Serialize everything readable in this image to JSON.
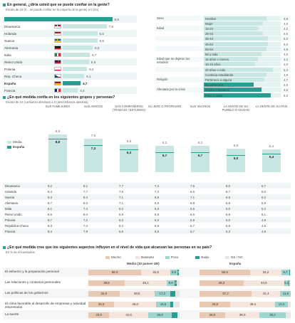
{
  "colors": {
    "mucho": "#e8c9b4",
    "bastante": "#f4e6dc",
    "poco": "#9ed6cf",
    "nada": "#2a9d92",
    "nsnc": "#e6e6e6",
    "highlight": "#2a9d92",
    "bar": "#c8e6e2"
  },
  "sec1": {
    "title": "En general, ¿diría usted que se puede confiar en la gente?",
    "subtitle": "Escala de 10 (0 ...se puede confiar en la mayoría de la gente) a 0 (no)"
  },
  "countries": [
    {
      "name": "Media (10 países UE)",
      "value": "5,5",
      "flag": "none"
    },
    {
      "name": "Dinamarca",
      "value": "7,5",
      "flag": "dk"
    },
    {
      "name": "Holanda",
      "value": "6,5",
      "flag": "nl"
    },
    {
      "name": "Suecia",
      "value": "6,5",
      "flag": "se"
    },
    {
      "name": "Alemania",
      "value": "6,0",
      "flag": "de"
    },
    {
      "name": "Italia",
      "value": "5,7",
      "flag": "it"
    },
    {
      "name": "Reino Unido",
      "value": "5,6",
      "flag": "uk"
    },
    {
      "name": "Polonia",
      "value": "5,4",
      "flag": "pl"
    },
    {
      "name": "Rep. Checa",
      "value": "5,1",
      "flag": "cz"
    },
    {
      "name": "España",
      "value": "4,7",
      "flag": "es"
    },
    {
      "name": "Francia",
      "value": "4,4",
      "flag": "fr"
    }
  ],
  "right_table": [
    {
      "cat": "Sexo",
      "label": "Hombre",
      "value": "4,9"
    },
    {
      "cat": "",
      "label": "Mujer",
      "value": "4,6"
    },
    {
      "cat": "Edad",
      "label": "18-24",
      "value": "4,2"
    },
    {
      "cat": "",
      "label": "25-34",
      "value": "4,6"
    },
    {
      "cat": "",
      "label": "35-44",
      "value": "5,0"
    },
    {
      "cat": "",
      "label": "45-54",
      "value": "5,0"
    },
    {
      "cat": "",
      "label": "55-64",
      "value": "4,9"
    },
    {
      "cat": "",
      "label": "65 y más",
      "value": "4,5"
    },
    {
      "cat": "Edad que se dejaron los estudios",
      "label": "15 años o menos",
      "value": "4,2"
    },
    {
      "cat": "",
      "label": "16-19 años",
      "value": "4,0"
    },
    {
      "cat": "",
      "label": "20 años o más",
      "value": "5,4"
    },
    {
      "cat": "",
      "label": "Continúa estudiando",
      "value": "4,9"
    },
    {
      "cat": "Religión",
      "label": "Pertenece a alguna",
      "value": "4,7"
    },
    {
      "cat": "",
      "label": "No pertenece",
      "value": "3,9"
    },
    {
      "cat": "Afectado por la crisis",
      "label": "Mucho o bastante",
      "value": "4,5"
    },
    {
      "cat": "",
      "label": "Poco o nada",
      "value": "5,2"
    }
  ],
  "sec2": {
    "title": "¿En qué medida confía en los siguientes grupos y personas?",
    "subtitle": "Escala de 10 (confianza absoluta) a 0 (desconfianza absoluta)",
    "legend_media": "Media",
    "legend_espana": "España"
  },
  "groups": [
    {
      "label": "SUS FAMILIARES",
      "media": "8,8",
      "espana": "8,8"
    },
    {
      "label": "SUS AMIGOS",
      "media": "7,9",
      "espana": "7,3"
    },
    {
      "label": "SUS COMPAÑEROS (TRABAJO / ESTUDIOS)",
      "media": "6,5",
      "espana": "6,3"
    },
    {
      "label": "SU JEFE O PROFESOR",
      "media": "6,2",
      "espana": "5,7"
    },
    {
      "label": "SUS VECINOS",
      "media": "6,2",
      "espana": "5,7"
    },
    {
      "label": "LA GENTE DE SU PUEBLO O CIUDAD",
      "media": "5,5",
      "espana": "5,0"
    },
    {
      "label": "LA GENTE DE SU PAÍS",
      "media": "5,4",
      "espana": "5,4"
    }
  ],
  "group_table": [
    {
      "name": "Dinamarca",
      "vals": [
        "9,2",
        "8,1",
        "7,7",
        "7,4",
        "7,6",
        "8,0",
        "6,7"
      ]
    },
    {
      "name": "Holanda",
      "vals": [
        "8,4",
        "7,7",
        "7,5",
        "7,3",
        "6,5",
        "6,7",
        "6,0"
      ]
    },
    {
      "name": "Suecia",
      "vals": [
        "9,3",
        "8,4",
        "7,1",
        "6,8",
        "7,1",
        "6,5",
        "6,2"
      ]
    },
    {
      "name": "Alemania",
      "vals": [
        "8,7",
        "8,2",
        "7,1",
        "6,0",
        "6,8",
        "5,6",
        "5,8"
      ]
    },
    {
      "name": "Italia",
      "vals": [
        "8,1",
        "7,4",
        "6,2",
        "6,3",
        "5,6",
        "5,0",
        "5,4"
      ]
    },
    {
      "name": "Reino Unido",
      "vals": [
        "8,6",
        "8,4",
        "6,8",
        "5,8",
        "6,5",
        "5,5",
        "5,1"
      ]
    },
    {
      "name": "Polonia",
      "vals": [
        "8,7",
        "7,2",
        "6,3",
        "6,2",
        "5,9",
        "5,0",
        "4,9"
      ]
    },
    {
      "name": "República Checa",
      "vals": [
        "8,3",
        "7,4",
        "6,2",
        "5,9",
        "5,7",
        "5,6",
        "4,6"
      ]
    },
    {
      "name": "Francia",
      "vals": [
        "8,4",
        "7,9",
        "6,6",
        "5,5",
        "5,7",
        "5,3",
        "4,9"
      ]
    }
  ],
  "sec3": {
    "title": "¿En qué medida cree que los siguientes aspectos influyen en el nivel de vida que alcanzan las personas en su país?",
    "subtitle": "En % de encuestados",
    "legend": [
      "Mucho",
      "Bastante",
      "Poco",
      "Nada",
      "NS / NC"
    ],
    "col_media": "Media (10 países UE)",
    "col_espana": "España"
  },
  "chart_data": [
    {
      "type": "bar",
      "title": "En general, ¿diría usted que se puede confiar en la gente?",
      "categories": [
        "Media (10 países UE)",
        "Dinamarca",
        "Holanda",
        "Suecia",
        "Alemania",
        "Italia",
        "Reino Unido",
        "Polonia",
        "Rep. Checa",
        "España",
        "Francia"
      ],
      "values": [
        5.5,
        7.5,
        6.5,
        6.5,
        6.0,
        5.7,
        5.6,
        5.4,
        5.1,
        4.7,
        4.4
      ],
      "xlim": [
        0,
        10
      ]
    },
    {
      "type": "bar",
      "title": "¿En qué medida confía en los siguientes grupos y personas?",
      "categories": [
        "SUS FAMILIARES",
        "SUS AMIGOS",
        "SUS COMPAÑEROS (TRABAJO / ESTUDIOS)",
        "SU JEFE O PROFESOR",
        "SUS VECINOS",
        "LA GENTE DE SU PUEBLO O CIUDAD",
        "LA GENTE DE SU PAÍS"
      ],
      "series": [
        {
          "name": "Media",
          "values": [
            8.8,
            7.9,
            6.5,
            6.2,
            6.2,
            5.5,
            5.4
          ]
        },
        {
          "name": "España",
          "values": [
            8.8,
            7.3,
            6.3,
            5.7,
            5.7,
            5.0,
            5.4
          ]
        }
      ],
      "ylim": [
        0,
        10
      ]
    },
    {
      "type": "bar",
      "title": "¿En qué medida cree que los siguientes aspectos influyen en el nivel de vida que alcanzan las personas en su país?",
      "stacked": true,
      "categories": [
        "El esfuerzo y la preparación personal",
        "Las relaciones y contactos personales",
        "Las políticas de los gobiernos",
        "El clima favorable al desarrollo de empresas y actividad empresarial",
        "La suerte"
      ],
      "series_names": [
        "Mucho",
        "Bastante",
        "Poco",
        "Nada",
        "NS / NC"
      ],
      "media": [
        [
          58.0,
          31.8,
          8.0,
          1.6,
          0.6
        ],
        [
          39.8,
          46.1,
          9.0,
          2.2,
          2.9
        ],
        [
          34.0,
          38.5,
          17.2,
          5.5,
          4.8
        ],
        [
          28.3,
          46.0,
          15.5,
          3.5,
          6.7
        ],
        [
          23.0,
          42.6,
          25.8,
          6.0,
          2.6
        ]
      ],
      "espana": [
        [
          55.5,
          34.2,
          8.7,
          0.9,
          0.7
        ],
        [
          48.3,
          44.5,
          5.1,
          0.7,
          1.4
        ],
        [
          57.2,
          31.4,
          11.6,
          0.0,
          0.0
        ],
        [
          33.8,
          49.4,
          13.3,
          0.0,
          3.5
        ],
        [
          28.0,
          38.0,
          28.2,
          0.0,
          5.8
        ]
      ],
      "labels_media": [
        [
          "58,0",
          "31,8",
          "8,0",
          "1,6",
          ""
        ],
        [
          "39,8",
          "46,1",
          "9,0",
          "2,2",
          ""
        ],
        [
          "34,0",
          "38,5",
          "17,2",
          "",
          ""
        ],
        [
          "28,3",
          "46,0",
          "15,5",
          "",
          ""
        ],
        [
          "23,0",
          "42,6",
          "25,8",
          "",
          ""
        ]
      ],
      "labels_espana": [
        [
          "55,5",
          "34,2",
          "8,7",
          "",
          ""
        ],
        [
          "48,3",
          "44,5",
          "5,1",
          "",
          ""
        ],
        [
          "57,2",
          "31,4",
          "11,6",
          "",
          ""
        ],
        [
          "33,8",
          "49,4",
          "13,3",
          "",
          ""
        ],
        [
          "28,0",
          "38,0",
          "28,2",
          "",
          ""
        ]
      ],
      "xlim": [
        0,
        100
      ]
    }
  ]
}
